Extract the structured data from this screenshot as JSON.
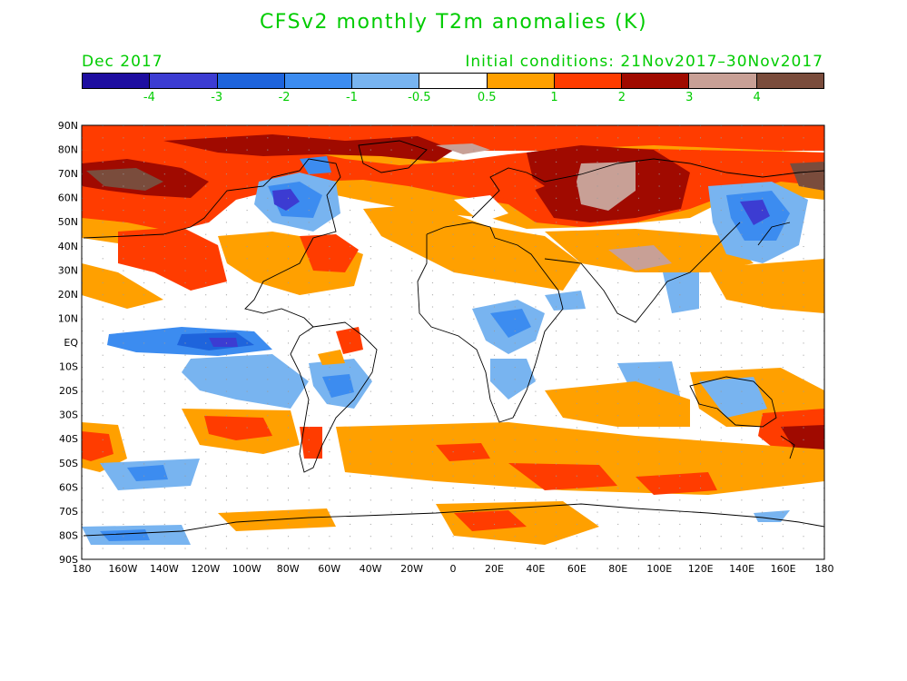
{
  "title": "CFSv2 monthly T2m anomalies (K)",
  "month": "Dec 2017",
  "initial_conditions": "Initial conditions: 21Nov2017–30Nov2017",
  "text_color": "#00cc00",
  "colorbar": {
    "colors": [
      "#1e0ea0",
      "#3c3cd2",
      "#1e64dc",
      "#3c8cf0",
      "#78b4f0",
      "#ffffff",
      "#ffa000",
      "#ff3c00",
      "#a00a00",
      "#c8a096",
      "#7a4c3c"
    ],
    "labels": [
      "-4",
      "-3",
      "-2",
      "-1",
      "-0.5",
      "0.5",
      "1",
      "2",
      "3",
      "4"
    ]
  },
  "map": {
    "lat_labels": [
      "90N",
      "80N",
      "70N",
      "60N",
      "50N",
      "40N",
      "30N",
      "20N",
      "10N",
      "EQ",
      "10S",
      "20S",
      "30S",
      "40S",
      "50S",
      "60S",
      "70S",
      "80S",
      "90S"
    ],
    "lon_labels": [
      "180",
      "160W",
      "140W",
      "120W",
      "100W",
      "80W",
      "60W",
      "40W",
      "20W",
      "0",
      "20E",
      "40E",
      "60E",
      "80E",
      "100E",
      "120E",
      "140E",
      "160E",
      "180"
    ]
  }
}
